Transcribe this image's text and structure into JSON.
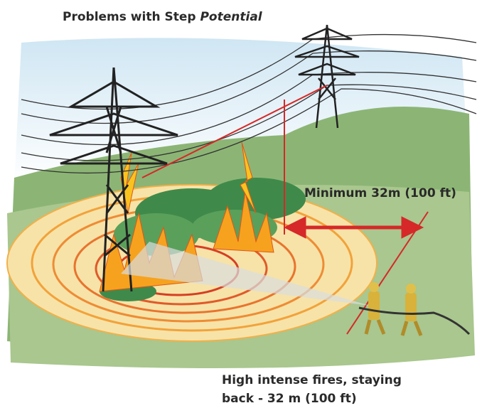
{
  "title": {
    "text": "Problems with Step ",
    "emphasis": "Potential"
  },
  "distance_label": "Minimum 32m (100 ft)",
  "caption": {
    "lines": [
      "High intense fires, staying",
      "back - 32 m (100 ft)"
    ]
  }
}
